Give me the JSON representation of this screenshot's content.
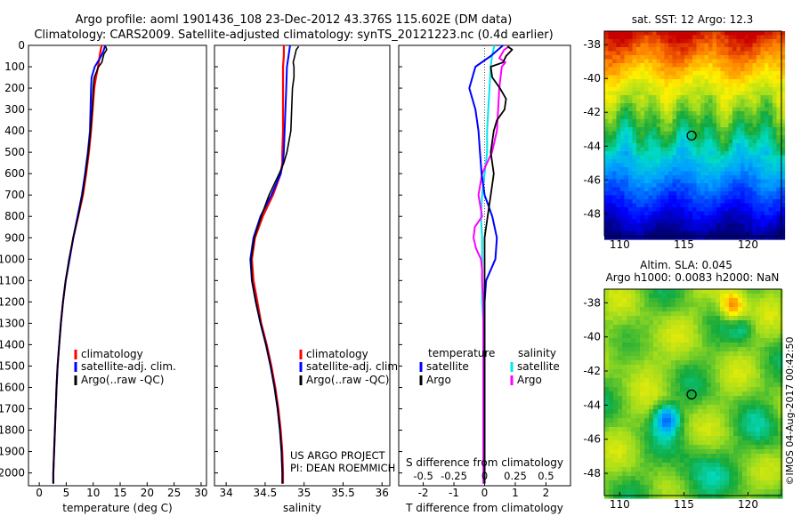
{
  "header": {
    "line1": "Argo profile: aoml 1901436_108 23-Dec-2012 43.376S 115.602E (DM data)",
    "line2": "Climatology: CARS2009. Satellite-adjusted climatology: synTS_20121223.nc (0.4d earlier)"
  },
  "colors": {
    "climatology": "#ff0000",
    "satellite": "#0000ff",
    "argo": "#000000",
    "sal_satellite": "#00e5ee",
    "sal_argo": "#ff00ff"
  },
  "depth_axis": {
    "ticks": [
      "0",
      "100",
      "200",
      "300",
      "400",
      "500",
      "600",
      "700",
      "800",
      "900",
      "1000",
      "1100",
      "1200",
      "1300",
      "1400",
      "1500",
      "1600",
      "1700",
      "1800",
      "1900",
      "2000"
    ]
  },
  "chart_data": [
    {
      "type": "line",
      "id": "temperature",
      "xlabel": "temperature (deg C)",
      "xlim": [
        -2,
        31
      ],
      "ylim": [
        0,
        2060
      ],
      "xticks": [
        "0",
        "5",
        "10",
        "15",
        "20",
        "25",
        "30"
      ],
      "xtick_values": [
        0,
        5,
        10,
        15,
        20,
        25,
        30
      ],
      "legend": [
        "climatology",
        "satellite-adj. clim.",
        "Argo(..raw -QC)"
      ],
      "series": [
        {
          "name": "climatology",
          "depth": [
            0,
            20,
            50,
            100,
            150,
            200,
            300,
            400,
            500,
            600,
            700,
            800,
            900,
            1000,
            1100,
            1200,
            1300,
            1400,
            1500,
            1600,
            1800,
            2000,
            2050
          ],
          "values": [
            11.6,
            11.4,
            11.2,
            10.9,
            10.5,
            10.2,
            9.9,
            9.6,
            9.2,
            8.7,
            8.1,
            7.2,
            6.3,
            5.6,
            4.9,
            4.4,
            4.0,
            3.7,
            3.4,
            3.2,
            2.9,
            2.6,
            2.6
          ]
        },
        {
          "name": "satellite-adj. clim.",
          "depth": [
            0,
            20,
            50,
            100,
            150,
            200,
            300,
            400,
            500,
            600,
            700,
            800,
            900,
            1000,
            1100,
            1200,
            1300,
            1400,
            1500,
            1600,
            1800,
            2000,
            2050
          ],
          "values": [
            12.2,
            12.0,
            11.5,
            10.3,
            9.7,
            9.6,
            9.5,
            9.4,
            9.0,
            8.5,
            7.9,
            7.1,
            6.3,
            5.6,
            4.9,
            4.4,
            4.0,
            3.7,
            3.4,
            3.2,
            2.9,
            2.6,
            2.6
          ]
        },
        {
          "name": "Argo(..raw -QC)",
          "depth": [
            5,
            20,
            40,
            60,
            80,
            100,
            150,
            200,
            300,
            400,
            500,
            600,
            700,
            800,
            900,
            1000,
            1100,
            1200,
            1300,
            1400,
            1500,
            1600,
            1800,
            2000,
            2050
          ],
          "values": [
            12.3,
            12.5,
            12.0,
            11.8,
            11.6,
            11.0,
            10.2,
            10.0,
            9.8,
            9.5,
            9.1,
            8.6,
            8.0,
            7.2,
            6.3,
            5.5,
            4.9,
            4.4,
            4.0,
            3.7,
            3.4,
            3.2,
            2.9,
            2.6,
            2.6
          ]
        }
      ]
    },
    {
      "type": "line",
      "id": "salinity",
      "xlabel": "salinity",
      "xlim": [
        33.85,
        36.1
      ],
      "ylim": [
        0,
        2060
      ],
      "xticks": [
        "34",
        "34.5",
        "35",
        "35.5",
        "36"
      ],
      "xtick_values": [
        34,
        34.5,
        35,
        35.5,
        36
      ],
      "legend": [
        "climatology",
        "satellite-adj. clim.",
        "Argo(..raw -QC)"
      ],
      "annotation": [
        "US ARGO PROJECT",
        "PI: DEAN ROEMMICH"
      ],
      "series": [
        {
          "name": "climatology",
          "depth": [
            0,
            50,
            100,
            200,
            300,
            400,
            500,
            550,
            600,
            700,
            800,
            900,
            1000,
            1100,
            1200,
            1300,
            1400,
            1500,
            1600,
            1700,
            1800,
            1900,
            2000,
            2050
          ],
          "values": [
            34.74,
            34.74,
            34.73,
            34.73,
            34.73,
            34.73,
            34.72,
            34.72,
            34.7,
            34.6,
            34.47,
            34.37,
            34.33,
            34.35,
            34.4,
            34.45,
            34.52,
            34.58,
            34.63,
            34.67,
            34.7,
            34.72,
            34.73,
            34.73
          ]
        },
        {
          "name": "satellite-adj. clim.",
          "depth": [
            0,
            50,
            100,
            200,
            300,
            400,
            500,
            550,
            600,
            700,
            800,
            900,
            1000,
            1100,
            1200,
            1300,
            1400,
            1500,
            1600,
            1700,
            1800,
            1900,
            2000,
            2050
          ],
          "values": [
            34.82,
            34.8,
            34.78,
            34.77,
            34.76,
            34.75,
            34.74,
            34.73,
            34.7,
            34.58,
            34.44,
            34.35,
            34.31,
            34.33,
            34.38,
            34.44,
            34.51,
            34.57,
            34.62,
            34.66,
            34.69,
            34.71,
            34.72,
            34.72
          ]
        },
        {
          "name": "Argo(..raw -QC)",
          "depth": [
            5,
            20,
            50,
            80,
            100,
            150,
            200,
            300,
            400,
            500,
            550,
            600,
            700,
            800,
            900,
            1000,
            1100,
            1200,
            1300,
            1400,
            1500,
            1600,
            1700,
            1800,
            1900,
            2000,
            2050
          ],
          "values": [
            34.93,
            34.9,
            34.88,
            34.86,
            34.87,
            34.87,
            34.85,
            34.84,
            34.83,
            34.78,
            34.74,
            34.68,
            34.55,
            34.45,
            34.36,
            34.32,
            34.33,
            34.38,
            34.44,
            34.51,
            34.57,
            34.62,
            34.66,
            34.69,
            34.71,
            34.72,
            34.72
          ]
        }
      ]
    },
    {
      "type": "line",
      "id": "difference",
      "xlabel": "T difference from climatology",
      "xlabel_top": "S difference from climatology",
      "xlim": [
        -2.8,
        2.8
      ],
      "ylim": [
        0,
        2060
      ],
      "xticks": [
        "-2",
        "-1",
        "0",
        "1",
        "2"
      ],
      "xtick_values": [
        -2,
        -1,
        0,
        1,
        2
      ],
      "sticks": [
        "-0.5",
        "-0.25",
        "0",
        "0.25",
        "0.5"
      ],
      "stick_values": [
        -0.5,
        -0.25,
        0,
        0.25,
        0.5
      ],
      "s_scale": 4,
      "legend_titles": [
        "temperature",
        "salinity"
      ],
      "legend_t": [
        "satellite",
        "Argo"
      ],
      "legend_s": [
        "satellite",
        "Argo"
      ],
      "series": [
        {
          "name": "T satellite",
          "depth": [
            0,
            50,
            100,
            200,
            300,
            400,
            500,
            600,
            700,
            800,
            900,
            1000,
            1100,
            1200,
            1300,
            1500,
            1800,
            2050
          ],
          "values": [
            0.6,
            0.2,
            -0.3,
            -0.5,
            -0.3,
            -0.2,
            -0.15,
            -0.1,
            0.0,
            0.25,
            0.4,
            0.35,
            0.05,
            0.0,
            0.0,
            0.0,
            0.0,
            0.0
          ]
        },
        {
          "name": "T Argo",
          "depth": [
            5,
            20,
            50,
            80,
            100,
            150,
            200,
            250,
            300,
            350,
            400,
            500,
            600,
            700,
            800,
            900,
            1000,
            1100,
            1200,
            1300,
            1500,
            1800,
            2050
          ],
          "values": [
            0.75,
            0.9,
            0.7,
            0.6,
            0.2,
            0.25,
            0.5,
            0.7,
            0.65,
            0.4,
            0.3,
            0.2,
            0.3,
            0.2,
            0.1,
            0.0,
            0.0,
            0.0,
            0.0,
            0.0,
            0.0,
            0.0,
            0.0
          ]
        },
        {
          "name": "S satellite",
          "depth": [
            0,
            50,
            100,
            200,
            300,
            400,
            500,
            600,
            700,
            800,
            900,
            1000,
            1100,
            1200,
            1300,
            1500,
            1800,
            2050
          ],
          "values": [
            0.08,
            0.06,
            0.05,
            0.04,
            0.03,
            0.02,
            0.02,
            0.0,
            -0.02,
            -0.03,
            -0.02,
            -0.02,
            -0.02,
            -0.02,
            -0.01,
            -0.01,
            -0.01,
            -0.01
          ]
        },
        {
          "name": "S Argo",
          "depth": [
            5,
            20,
            40,
            60,
            80,
            100,
            150,
            200,
            300,
            400,
            500,
            600,
            700,
            800,
            850,
            900,
            950,
            1000,
            1050,
            1100,
            1200,
            1300,
            1500,
            1800,
            2050
          ],
          "values": [
            0.2,
            0.16,
            0.14,
            0.12,
            0.17,
            0.14,
            0.13,
            0.12,
            0.11,
            0.1,
            0.06,
            -0.02,
            -0.05,
            -0.02,
            -0.08,
            -0.09,
            -0.07,
            -0.03,
            -0.02,
            -0.02,
            -0.01,
            -0.01,
            -0.01,
            -0.01,
            -0.01
          ]
        }
      ]
    },
    {
      "type": "heatmap",
      "id": "sst_map",
      "title": "sat. SST: 12  Argo: 12.3",
      "xlim": [
        108.8,
        122.6
      ],
      "ylim": [
        -49.3,
        -37.2
      ],
      "xticks": [
        "110",
        "115",
        "120"
      ],
      "xtick_values": [
        110,
        115,
        120
      ],
      "yticks": [
        "-38",
        "-40",
        "-42",
        "-44",
        "-46",
        "-48"
      ],
      "ytick_values": [
        -38,
        -40,
        -42,
        -44,
        -46,
        -48
      ],
      "marker": {
        "lon": 115.602,
        "lat": -43.376
      }
    },
    {
      "type": "heatmap",
      "id": "sla_map",
      "title": "Altim. SLA: 0.045",
      "subtitle": "Argo h1000: 0.0083 h2000: NaN",
      "xlim": [
        108.8,
        122.6
      ],
      "ylim": [
        -49.3,
        -37.2
      ],
      "xticks": [
        "110",
        "115",
        "120"
      ],
      "xtick_values": [
        110,
        115,
        120
      ],
      "yticks": [
        "-38",
        "-40",
        "-42",
        "-44",
        "-46",
        "-48"
      ],
      "ytick_values": [
        -38,
        -40,
        -42,
        -44,
        -46,
        -48
      ],
      "marker": {
        "lon": 115.602,
        "lat": -43.376
      }
    }
  ],
  "footer_stamp": "©IMOS 04-Aug-2017 00:42:50"
}
